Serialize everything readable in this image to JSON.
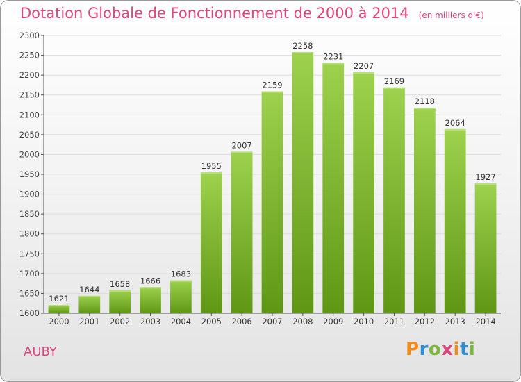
{
  "chart_data": {
    "type": "bar",
    "title": "Dotation Globale de Fonctionnement de 2000 à 2014",
    "subtitle": "(en milliers d'€)",
    "categories": [
      "2000",
      "2001",
      "2002",
      "2003",
      "2004",
      "2005",
      "2006",
      "2007",
      "2008",
      "2009",
      "2010",
      "2011",
      "2012",
      "2013",
      "2014"
    ],
    "values": [
      1621,
      1644,
      1658,
      1666,
      1683,
      1955,
      2007,
      2159,
      2258,
      2231,
      2207,
      2169,
      2118,
      2064,
      1927
    ],
    "ylim": [
      1600,
      2300
    ],
    "yticks": [
      1600,
      1650,
      1700,
      1750,
      1800,
      1850,
      1900,
      1950,
      2000,
      2050,
      2100,
      2150,
      2200,
      2250,
      2300
    ],
    "grid": true,
    "xlabel": "",
    "ylabel": ""
  },
  "colors": {
    "title": "#e0457b",
    "bar_top": "#9dd14e",
    "bar_bottom": "#5f9714",
    "grid": "#dcdcdc"
  },
  "commune": "AUBY",
  "logo": {
    "letters": [
      "P",
      "r",
      "o",
      "x",
      "i",
      "t",
      "i"
    ],
    "colors": [
      "#f08c1e",
      "#2f8fd0",
      "#7cb73a",
      "#e0457b",
      "#f08c1e",
      "#2f8fd0",
      "#7cb73a"
    ]
  }
}
